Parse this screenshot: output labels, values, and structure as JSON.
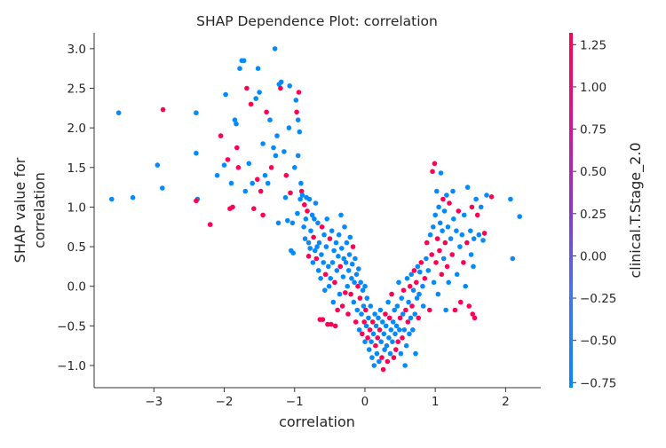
{
  "chart_data": {
    "type": "scatter",
    "title": "SHAP Dependence Plot: correlation",
    "xlabel": "correlation",
    "ylabel_lines": [
      "SHAP value for",
      "correlation"
    ],
    "xlim": [
      -3.85,
      2.5
    ],
    "ylim": [
      -1.28,
      3.2
    ],
    "x_ticks": [
      -3,
      -2,
      -1,
      0,
      1,
      2
    ],
    "x_tick_labels": [
      "−3",
      "−2",
      "−1",
      "0",
      "1",
      "2"
    ],
    "y_ticks": [
      -1.0,
      -0.5,
      0.0,
      0.5,
      1.0,
      1.5,
      2.0,
      2.5,
      3.0
    ],
    "y_tick_labels": [
      "−1.0",
      "−0.5",
      "0.0",
      "0.5",
      "1.0",
      "1.5",
      "2.0",
      "2.5",
      "3.0"
    ],
    "grid": false,
    "colorbar": {
      "label": "clinical.T.Stage_2.0",
      "range": [
        -0.78,
        1.32
      ],
      "ticks": [
        -0.75,
        -0.5,
        -0.25,
        0.0,
        0.25,
        0.5,
        0.75,
        1.0,
        1.25
      ],
      "tick_labels": [
        "−0.75",
        "−0.50",
        "−0.25",
        "0.00",
        "0.25",
        "0.50",
        "0.75",
        "1.00",
        "1.25"
      ],
      "low_color": "#008bfb",
      "high_color": "#ff0052"
    },
    "points": [
      [
        -3.6,
        1.1,
        -0.75
      ],
      [
        -3.5,
        2.19,
        -0.75
      ],
      [
        -3.3,
        1.12,
        -0.75
      ],
      [
        -2.95,
        1.53,
        -0.75
      ],
      [
        -2.88,
        1.24,
        -0.75
      ],
      [
        -2.87,
        2.23,
        1.3
      ],
      [
        -2.4,
        2.19,
        -0.75
      ],
      [
        -2.4,
        1.68,
        -0.75
      ],
      [
        -2.38,
        1.1,
        -0.75
      ],
      [
        -2.4,
        1.08,
        1.3
      ],
      [
        -2.2,
        0.78,
        1.3
      ],
      [
        -2.1,
        1.4,
        -0.75
      ],
      [
        -2.05,
        1.9,
        1.3
      ],
      [
        -2.0,
        1.53,
        -0.75
      ],
      [
        -1.98,
        2.42,
        -0.75
      ],
      [
        -1.95,
        1.6,
        1.3
      ],
      [
        -1.92,
        0.98,
        1.3
      ],
      [
        -1.9,
        1.3,
        -0.75
      ],
      [
        -1.88,
        1.0,
        1.3
      ],
      [
        -1.85,
        2.1,
        -0.75
      ],
      [
        -1.83,
        2.05,
        -0.75
      ],
      [
        -1.82,
        1.75,
        1.3
      ],
      [
        -1.8,
        1.5,
        1.3
      ],
      [
        -1.78,
        2.75,
        -0.75
      ],
      [
        -1.75,
        2.85,
        -0.75
      ],
      [
        -1.72,
        2.85,
        -0.75
      ],
      [
        -1.7,
        1.2,
        -0.75
      ],
      [
        -1.68,
        2.5,
        1.3
      ],
      [
        -1.65,
        1.55,
        -0.75
      ],
      [
        -1.62,
        2.3,
        1.3
      ],
      [
        -1.6,
        1.3,
        -0.75
      ],
      [
        -1.58,
        0.98,
        1.3
      ],
      [
        -1.55,
        2.37,
        -0.75
      ],
      [
        -1.53,
        1.35,
        1.3
      ],
      [
        -1.52,
        2.75,
        -0.75
      ],
      [
        -1.5,
        2.45,
        -0.75
      ],
      [
        -1.48,
        1.2,
        1.3
      ],
      [
        -1.45,
        1.8,
        -0.75
      ],
      [
        -1.45,
        0.9,
        1.3
      ],
      [
        -1.42,
        1.4,
        -0.75
      ],
      [
        -1.4,
        2.2,
        1.3
      ],
      [
        -1.38,
        1.3,
        -0.75
      ],
      [
        -1.35,
        2.1,
        -0.75
      ],
      [
        -1.33,
        1.5,
        1.3
      ],
      [
        -1.3,
        1.75,
        -0.75
      ],
      [
        -1.28,
        3.0,
        -0.75
      ],
      [
        -1.27,
        1.65,
        -0.75
      ],
      [
        -1.25,
        1.9,
        -0.75
      ],
      [
        -1.23,
        0.8,
        -0.75
      ],
      [
        -1.22,
        2.55,
        -0.75
      ],
      [
        -1.2,
        2.5,
        1.3
      ],
      [
        -1.19,
        2.58,
        -0.75
      ],
      [
        -1.15,
        1.7,
        -0.75
      ],
      [
        -1.13,
        1.12,
        -0.75
      ],
      [
        -1.12,
        1.4,
        1.3
      ],
      [
        -1.1,
        0.83,
        -0.75
      ],
      [
        -1.08,
        2.0,
        -0.75
      ],
      [
        -1.07,
        2.53,
        -0.75
      ],
      [
        -1.06,
        1.18,
        1.3
      ],
      [
        -1.05,
        0.45,
        -0.75
      ],
      [
        -1.03,
        0.8,
        -0.75
      ],
      [
        -1.02,
        0.42,
        -0.75
      ],
      [
        -1.0,
        1.5,
        -0.75
      ],
      [
        -0.98,
        2.35,
        -0.75
      ],
      [
        -0.97,
        2.2,
        1.3
      ],
      [
        -0.96,
        0.92,
        -0.75
      ],
      [
        -0.95,
        1.65,
        -0.75
      ],
      [
        -0.95,
        2.1,
        -0.75
      ],
      [
        -0.94,
        2.45,
        1.3
      ],
      [
        -0.93,
        1.95,
        -0.75
      ],
      [
        -0.92,
        1.1,
        -0.75
      ],
      [
        -0.91,
        1.3,
        -0.75
      ],
      [
        -0.9,
        1.2,
        1.3
      ],
      [
        -0.89,
        1.15,
        -0.75
      ],
      [
        -0.87,
        0.75,
        -0.75
      ],
      [
        -0.86,
        1.03,
        1.3
      ],
      [
        -0.85,
        0.6,
        -0.75
      ],
      [
        -0.84,
        0.85,
        -0.75
      ],
      [
        -0.83,
        1.12,
        -0.75
      ],
      [
        -0.82,
        0.95,
        1.3
      ],
      [
        -0.8,
        0.55,
        -0.75
      ],
      [
        -0.8,
        0.38,
        1.3
      ],
      [
        -0.79,
        1.1,
        -0.75
      ],
      [
        -0.78,
        0.48,
        -0.75
      ],
      [
        -0.77,
        0.7,
        -0.75
      ],
      [
        -0.75,
        0.9,
        -0.75
      ],
      [
        -0.74,
        0.3,
        -0.75
      ],
      [
        -0.73,
        0.62,
        1.3
      ],
      [
        -0.72,
        0.85,
        -0.75
      ],
      [
        -0.71,
        0.45,
        -0.75
      ],
      [
        -0.7,
        1.05,
        -0.75
      ],
      [
        -0.69,
        0.35,
        1.3
      ],
      [
        -0.68,
        0.5,
        -0.75
      ],
      [
        -0.67,
        0.8,
        -0.75
      ],
      [
        -0.66,
        0.2,
        -0.75
      ],
      [
        -0.65,
        0.55,
        -0.75
      ],
      [
        -0.64,
        -0.42,
        1.3
      ],
      [
        -0.63,
        0.1,
        -0.75
      ],
      [
        -0.62,
        0.4,
        -0.75
      ],
      [
        -0.61,
        0.75,
        1.3
      ],
      [
        -0.6,
        -0.42,
        1.3
      ],
      [
        -0.59,
        0.3,
        -0.75
      ],
      [
        -0.58,
        0.65,
        -0.75
      ],
      [
        -0.57,
        -0.05,
        -0.75
      ],
      [
        -0.56,
        0.15,
        1.3
      ],
      [
        -0.55,
        0.5,
        -0.75
      ],
      [
        -0.54,
        0.85,
        -0.75
      ],
      [
        -0.53,
        -0.48,
        1.3
      ],
      [
        -0.52,
        0.25,
        -0.75
      ],
      [
        -0.51,
        0.0,
        -0.75
      ],
      [
        -0.5,
        0.6,
        1.3
      ],
      [
        -0.49,
        0.1,
        -0.75
      ],
      [
        -0.48,
        -0.48,
        1.3
      ],
      [
        -0.47,
        0.7,
        -0.75
      ],
      [
        -0.46,
        0.3,
        -0.75
      ],
      [
        -0.45,
        -0.2,
        -0.75
      ],
      [
        -0.44,
        0.45,
        -0.75
      ],
      [
        -0.43,
        0.05,
        1.3
      ],
      [
        -0.42,
        -0.5,
        1.3
      ],
      [
        -0.41,
        0.55,
        -0.75
      ],
      [
        -0.4,
        0.2,
        -0.75
      ],
      [
        -0.39,
        -0.3,
        1.3
      ],
      [
        -0.38,
        0.38,
        -0.75
      ],
      [
        -0.37,
        0.65,
        -0.75
      ],
      [
        -0.36,
        -0.1,
        -0.75
      ],
      [
        -0.35,
        0.25,
        1.3
      ],
      [
        -0.34,
        0.9,
        -0.75
      ],
      [
        -0.33,
        0.48,
        -0.75
      ],
      [
        -0.32,
        -0.25,
        1.3
      ],
      [
        -0.31,
        0.12,
        -0.75
      ],
      [
        -0.3,
        0.35,
        -0.75
      ],
      [
        -0.29,
        0.75,
        -0.75
      ],
      [
        -0.28,
        -0.08,
        1.3
      ],
      [
        -0.27,
        0.3,
        -0.75
      ],
      [
        -0.26,
        0.55,
        -0.75
      ],
      [
        -0.25,
        0.0,
        -0.75
      ],
      [
        -0.24,
        -0.35,
        1.3
      ],
      [
        -0.23,
        0.2,
        -0.75
      ],
      [
        -0.22,
        0.4,
        -0.75
      ],
      [
        -0.21,
        0.62,
        -0.75
      ],
      [
        -0.2,
        -0.1,
        1.3
      ],
      [
        -0.19,
        0.1,
        -0.75
      ],
      [
        -0.18,
        0.28,
        -0.75
      ],
      [
        -0.17,
        0.5,
        1.3
      ],
      [
        -0.16,
        -0.2,
        -0.75
      ],
      [
        -0.15,
        0.05,
        -0.75
      ],
      [
        -0.14,
        0.35,
        -0.75
      ],
      [
        -0.13,
        -0.45,
        1.3
      ],
      [
        -0.12,
        0.15,
        -0.75
      ],
      [
        -0.11,
        -0.3,
        -0.75
      ],
      [
        -0.1,
        0.0,
        1.3
      ],
      [
        -0.09,
        0.22,
        -0.75
      ],
      [
        -0.08,
        -0.55,
        -0.75
      ],
      [
        -0.07,
        -0.15,
        1.3
      ],
      [
        -0.06,
        0.05,
        -0.75
      ],
      [
        -0.05,
        -0.35,
        -0.75
      ],
      [
        -0.04,
        -0.6,
        1.3
      ],
      [
        -0.03,
        -0.05,
        -0.75
      ],
      [
        -0.02,
        -0.25,
        -0.75
      ],
      [
        -0.01,
        -0.45,
        1.3
      ],
      [
        0.0,
        0.0,
        -0.75
      ],
      [
        0.0,
        -0.7,
        -0.75
      ],
      [
        0.01,
        -0.3,
        1.3
      ],
      [
        0.02,
        -0.5,
        -0.75
      ],
      [
        0.03,
        -0.15,
        -0.75
      ],
      [
        0.04,
        -0.65,
        1.3
      ],
      [
        0.05,
        -0.4,
        -0.75
      ],
      [
        0.06,
        -0.8,
        -0.75
      ],
      [
        0.07,
        -0.55,
        1.3
      ],
      [
        0.08,
        -0.25,
        -0.75
      ],
      [
        0.09,
        -0.7,
        -0.75
      ],
      [
        0.1,
        -0.9,
        -0.75
      ],
      [
        0.11,
        -0.45,
        1.3
      ],
      [
        0.12,
        -0.6,
        -0.75
      ],
      [
        0.13,
        -1.0,
        -0.75
      ],
      [
        0.14,
        -0.35,
        -0.75
      ],
      [
        0.15,
        -0.75,
        1.3
      ],
      [
        0.16,
        -0.5,
        -0.75
      ],
      [
        0.17,
        -0.85,
        -0.75
      ],
      [
        0.18,
        -0.65,
        1.3
      ],
      [
        0.19,
        -0.4,
        -0.75
      ],
      [
        0.2,
        -0.95,
        -0.75
      ],
      [
        0.21,
        -0.55,
        1.3
      ],
      [
        0.22,
        -0.3,
        -0.75
      ],
      [
        0.23,
        -0.7,
        -0.75
      ],
      [
        0.24,
        -0.9,
        1.3
      ],
      [
        0.25,
        -0.45,
        -0.75
      ],
      [
        0.26,
        -1.05,
        1.3
      ],
      [
        0.27,
        -0.6,
        -0.75
      ],
      [
        0.28,
        -0.8,
        -0.75
      ],
      [
        0.29,
        -0.35,
        1.3
      ],
      [
        0.3,
        -0.5,
        -0.75
      ],
      [
        0.31,
        -0.75,
        -0.75
      ],
      [
        0.32,
        -0.95,
        1.3
      ],
      [
        0.33,
        -0.2,
        -0.75
      ],
      [
        0.34,
        -0.65,
        -0.75
      ],
      [
        0.35,
        -0.4,
        1.3
      ],
      [
        0.36,
        -0.85,
        -0.75
      ],
      [
        0.37,
        -0.55,
        -0.75
      ],
      [
        0.38,
        -0.1,
        1.3
      ],
      [
        0.39,
        -0.7,
        -0.75
      ],
      [
        0.4,
        -0.45,
        -0.75
      ],
      [
        0.41,
        -0.9,
        1.3
      ],
      [
        0.42,
        -0.3,
        -0.75
      ],
      [
        0.43,
        -0.6,
        -0.75
      ],
      [
        0.44,
        -0.8,
        1.3
      ],
      [
        0.45,
        -0.5,
        -0.75
      ],
      [
        0.46,
        -0.25,
        -0.75
      ],
      [
        0.47,
        -0.7,
        1.3
      ],
      [
        0.48,
        0.05,
        -0.75
      ],
      [
        0.49,
        -0.55,
        -0.75
      ],
      [
        0.5,
        -0.4,
        1.3
      ],
      [
        0.51,
        -0.85,
        -0.75
      ],
      [
        0.52,
        -0.15,
        -0.75
      ],
      [
        0.53,
        -0.65,
        1.3
      ],
      [
        0.54,
        -0.35,
        -0.75
      ],
      [
        0.55,
        -0.05,
        1.3
      ],
      [
        0.56,
        -0.55,
        -0.75
      ],
      [
        0.57,
        -1.0,
        -0.75
      ],
      [
        0.58,
        -0.3,
        1.3
      ],
      [
        0.59,
        -0.75,
        -0.75
      ],
      [
        0.6,
        0.1,
        -0.75
      ],
      [
        0.61,
        -0.45,
        1.3
      ],
      [
        0.62,
        -0.2,
        -0.75
      ],
      [
        0.63,
        -0.6,
        -0.75
      ],
      [
        0.64,
        0.0,
        1.3
      ],
      [
        0.65,
        -0.4,
        -0.75
      ],
      [
        0.66,
        0.15,
        -0.75
      ],
      [
        0.67,
        -0.25,
        1.3
      ],
      [
        0.68,
        -0.55,
        -0.75
      ],
      [
        0.69,
        -0.05,
        -0.75
      ],
      [
        0.7,
        0.2,
        1.3
      ],
      [
        0.71,
        -0.35,
        -0.75
      ],
      [
        0.72,
        -0.85,
        -0.75
      ],
      [
        0.73,
        0.05,
        1.3
      ],
      [
        0.74,
        -0.15,
        -0.75
      ],
      [
        0.75,
        0.25,
        -0.75
      ],
      [
        0.76,
        -0.4,
        1.3
      ],
      [
        0.77,
        -0.1,
        -0.75
      ],
      [
        0.78,
        0.18,
        -0.75
      ],
      [
        0.8,
        0.3,
        1.3
      ],
      [
        0.82,
        0.0,
        -0.75
      ],
      [
        0.83,
        -0.25,
        -0.75
      ],
      [
        0.85,
        0.1,
        1.3
      ],
      [
        0.87,
        0.35,
        -0.75
      ],
      [
        0.88,
        0.55,
        1.3
      ],
      [
        0.9,
        0.2,
        -0.75
      ],
      [
        0.92,
        -0.3,
        1.3
      ],
      [
        0.93,
        0.65,
        -0.75
      ],
      [
        0.95,
        0.4,
        1.3
      ],
      [
        0.96,
        1.45,
        1.3
      ],
      [
        0.97,
        0.75,
        -0.75
      ],
      [
        0.98,
        0.05,
        -0.75
      ],
      [
        0.99,
        1.55,
        1.3
      ],
      [
        1.0,
        0.9,
        -0.75
      ],
      [
        1.01,
        0.3,
        1.3
      ],
      [
        1.02,
        1.2,
        -0.75
      ],
      [
        1.03,
        0.6,
        1.3
      ],
      [
        1.04,
        -0.1,
        -0.75
      ],
      [
        1.05,
        1.0,
        -0.75
      ],
      [
        1.06,
        0.45,
        1.3
      ],
      [
        1.07,
        0.8,
        -0.75
      ],
      [
        1.08,
        1.43,
        -0.75
      ],
      [
        1.09,
        0.15,
        1.3
      ],
      [
        1.1,
        0.7,
        -0.75
      ],
      [
        1.11,
        1.1,
        1.3
      ],
      [
        1.12,
        0.35,
        -0.75
      ],
      [
        1.13,
        0.95,
        -0.75
      ],
      [
        1.14,
        0.55,
        1.3
      ],
      [
        1.15,
        -0.3,
        -0.75
      ],
      [
        1.16,
        1.15,
        -0.75
      ],
      [
        1.17,
        0.25,
        1.3
      ],
      [
        1.18,
        0.75,
        -0.75
      ],
      [
        1.19,
        0.05,
        -0.75
      ],
      [
        1.2,
        1.05,
        1.3
      ],
      [
        1.22,
        0.6,
        -0.75
      ],
      [
        1.24,
        0.4,
        1.3
      ],
      [
        1.25,
        1.2,
        -0.75
      ],
      [
        1.26,
        0.85,
        -0.75
      ],
      [
        1.28,
        -0.3,
        1.3
      ],
      [
        1.3,
        0.7,
        -0.75
      ],
      [
        1.31,
        0.15,
        -0.75
      ],
      [
        1.33,
        0.95,
        1.3
      ],
      [
        1.35,
        0.5,
        -0.75
      ],
      [
        1.36,
        -0.2,
        1.3
      ],
      [
        1.38,
        0.65,
        -0.75
      ],
      [
        1.4,
        0.3,
        1.3
      ],
      [
        1.41,
        0.9,
        -0.75
      ],
      [
        1.43,
        0.0,
        -0.75
      ],
      [
        1.45,
        0.55,
        1.3
      ],
      [
        1.46,
        1.25,
        -0.75
      ],
      [
        1.48,
        -0.25,
        1.3
      ],
      [
        1.5,
        0.7,
        -0.75
      ],
      [
        1.51,
        0.4,
        -0.75
      ],
      [
        1.52,
        1.0,
        1.3
      ],
      [
        1.53,
        -0.35,
        1.3
      ],
      [
        1.54,
        0.25,
        -0.75
      ],
      [
        1.55,
        0.6,
        -0.75
      ],
      [
        1.56,
        -0.4,
        1.3
      ],
      [
        1.58,
        1.1,
        -0.75
      ],
      [
        1.6,
        0.9,
        1.3
      ],
      [
        1.62,
        0.65,
        -0.75
      ],
      [
        1.65,
        1.0,
        -0.75
      ],
      [
        1.68,
        0.58,
        -0.75
      ],
      [
        1.7,
        0.67,
        1.3
      ],
      [
        1.73,
        1.15,
        -0.75
      ],
      [
        1.8,
        1.13,
        1.3
      ],
      [
        2.07,
        1.1,
        -0.75
      ],
      [
        2.1,
        0.35,
        -0.75
      ],
      [
        2.2,
        0.88,
        -0.75
      ]
    ]
  }
}
